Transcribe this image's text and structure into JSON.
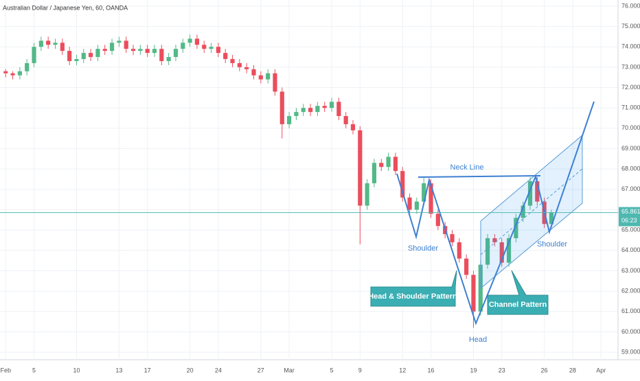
{
  "chart_data": {
    "type": "candlestick",
    "title": "Australian Dollar / Japanese Yen, 60, OANDA",
    "x": [
      0,
      0.5,
      1,
      1.5,
      2,
      2.5,
      3,
      3.5,
      4,
      4.5,
      5,
      5.5,
      6,
      6.5,
      7,
      7.5,
      8,
      8.5,
      9,
      9.5,
      10,
      10.5,
      11,
      11.5,
      12,
      12.5,
      13,
      13.5,
      14,
      14.5,
      15,
      15.5,
      16,
      16.5,
      17,
      17.5,
      18,
      18.5,
      19,
      19.5,
      20,
      20.5,
      21,
      21.5,
      22,
      22.5,
      23,
      23.5,
      24,
      24.5,
      25,
      25.5,
      26,
      26.5,
      27,
      27.5,
      28,
      28.5,
      29,
      29.5,
      30,
      30.5,
      31,
      31.5,
      32,
      32.5,
      33,
      33.5,
      34,
      34.5,
      35,
      35.5,
      36,
      36.5,
      37,
      37.5,
      38,
      38.5
    ],
    "open": [
      72.8,
      72.7,
      72.6,
      72.8,
      73.2,
      74.0,
      74.3,
      74.1,
      74.2,
      73.8,
      73.3,
      73.4,
      73.7,
      73.5,
      73.9,
      73.8,
      74.2,
      74.3,
      73.9,
      73.8,
      73.9,
      73.7,
      73.9,
      73.3,
      73.5,
      73.9,
      74.2,
      74.4,
      74.1,
      73.9,
      74.0,
      73.7,
      73.4,
      73.2,
      73.0,
      72.9,
      72.6,
      72.4,
      72.7,
      71.8,
      70.2,
      70.6,
      70.8,
      71.0,
      70.8,
      71.1,
      71.0,
      71.3,
      70.6,
      70.2,
      69.9,
      66.2,
      67.3,
      68.3,
      68.1,
      68.6,
      67.9,
      66.6,
      66.0,
      66.4,
      67.3,
      65.8,
      65.2,
      64.8,
      64.4,
      63.6,
      62.8,
      61.0,
      63.3,
      64.6,
      64.4,
      63.4,
      64.6,
      65.6,
      66.2,
      67.4,
      66.4,
      65.3
    ],
    "high": [
      72.9,
      72.8,
      73.0,
      73.4,
      74.2,
      74.5,
      74.5,
      74.4,
      74.4,
      74.0,
      73.6,
      73.9,
      73.9,
      74.1,
      74.1,
      74.4,
      74.5,
      74.5,
      74.1,
      74.1,
      74.1,
      74.1,
      74.1,
      73.7,
      74.1,
      74.4,
      74.6,
      74.6,
      74.3,
      74.2,
      74.2,
      73.9,
      73.6,
      73.4,
      73.2,
      73.1,
      72.8,
      72.9,
      72.9,
      72.0,
      70.8,
      71.0,
      71.2,
      71.2,
      71.3,
      71.3,
      71.5,
      71.5,
      70.8,
      70.4,
      70.1,
      67.5,
      68.5,
      68.5,
      68.8,
      68.8,
      68.1,
      66.8,
      66.6,
      67.6,
      67.5,
      66.0,
      65.4,
      65.0,
      64.6,
      63.8,
      63.0,
      63.5,
      64.8,
      64.8,
      64.6,
      64.8,
      65.8,
      66.4,
      67.6,
      67.6,
      66.6,
      66.0
    ],
    "low": [
      72.5,
      72.4,
      72.4,
      72.6,
      73.0,
      73.8,
      73.9,
      73.9,
      73.6,
      73.1,
      73.1,
      73.2,
      73.3,
      73.3,
      73.6,
      73.6,
      74.0,
      73.7,
      73.6,
      73.6,
      73.5,
      73.5,
      73.1,
      73.1,
      73.3,
      73.7,
      74.0,
      73.9,
      73.7,
      73.7,
      73.5,
      73.2,
      73.0,
      72.8,
      72.7,
      72.4,
      72.2,
      72.2,
      71.6,
      69.5,
      70.0,
      70.4,
      70.6,
      70.6,
      70.6,
      70.8,
      70.8,
      70.4,
      70.0,
      69.7,
      64.3,
      66.0,
      67.1,
      67.9,
      67.9,
      67.7,
      66.4,
      65.8,
      65.8,
      66.2,
      65.6,
      65.0,
      64.6,
      64.2,
      63.4,
      62.6,
      60.2,
      60.8,
      63.1,
      64.2,
      63.2,
      63.2,
      64.4,
      65.4,
      66.0,
      66.2,
      65.1,
      65.1
    ],
    "close": [
      72.7,
      72.6,
      72.8,
      73.2,
      74.0,
      74.3,
      74.1,
      74.2,
      73.8,
      73.3,
      73.4,
      73.7,
      73.5,
      73.9,
      73.8,
      74.2,
      74.3,
      73.9,
      73.8,
      73.9,
      73.7,
      73.9,
      73.3,
      73.5,
      73.9,
      74.2,
      74.4,
      74.1,
      73.9,
      74.0,
      73.7,
      73.4,
      73.2,
      73.0,
      72.9,
      72.6,
      72.4,
      72.7,
      71.8,
      70.2,
      70.6,
      70.8,
      71.0,
      70.8,
      71.1,
      71.0,
      71.3,
      70.6,
      70.2,
      69.9,
      66.2,
      67.3,
      68.3,
      68.1,
      68.6,
      67.9,
      66.6,
      66.0,
      66.4,
      67.3,
      65.8,
      65.2,
      64.8,
      64.4,
      63.6,
      62.8,
      61.0,
      63.3,
      64.6,
      64.4,
      63.4,
      64.6,
      65.6,
      66.2,
      67.4,
      66.4,
      65.3,
      65.86
    ],
    "up_color": "#53b987",
    "down_color": "#eb4d5c",
    "grid": true,
    "xlim": [
      -0.4,
      43.2
    ],
    "xticks": [
      {
        "value": 0,
        "label": "Feb"
      },
      {
        "value": 2,
        "label": "5"
      },
      {
        "value": 5,
        "label": "10"
      },
      {
        "value": 8,
        "label": "13"
      },
      {
        "value": 10,
        "label": "17"
      },
      {
        "value": 13,
        "label": "20"
      },
      {
        "value": 15,
        "label": "24"
      },
      {
        "value": 18,
        "label": "27"
      },
      {
        "value": 20,
        "label": "Mar"
      },
      {
        "value": 23,
        "label": "5"
      },
      {
        "value": 25,
        "label": "9"
      },
      {
        "value": 28,
        "label": "12"
      },
      {
        "value": 30,
        "label": "16"
      },
      {
        "value": 33,
        "label": "19"
      },
      {
        "value": 35,
        "label": "23"
      },
      {
        "value": 38,
        "label": "26"
      },
      {
        "value": 40,
        "label": "28"
      },
      {
        "value": 42,
        "label": "Apr"
      }
    ],
    "ylim": [
      58.7,
      76.3
    ],
    "yticks": [
      {
        "value": 59,
        "label": "59.000"
      },
      {
        "value": 60,
        "label": "60.000"
      },
      {
        "value": 61,
        "label": "61.000"
      },
      {
        "value": 62,
        "label": "62.000"
      },
      {
        "value": 63,
        "label": "63.000"
      },
      {
        "value": 64,
        "label": "64.000"
      },
      {
        "value": 65,
        "label": "65.000"
      },
      {
        "value": 66,
        "label": "66.000"
      },
      {
        "value": 67,
        "label": "67.000"
      },
      {
        "value": 68,
        "label": "68.000"
      },
      {
        "value": 69,
        "label": "69.000"
      },
      {
        "value": 70,
        "label": "70.000"
      },
      {
        "value": 71,
        "label": "71.000"
      },
      {
        "value": 72,
        "label": "72.000"
      },
      {
        "value": 73,
        "label": "73.000"
      },
      {
        "value": 74,
        "label": "74.000"
      },
      {
        "value": 75,
        "label": "75.000"
      },
      {
        "value": 76,
        "label": "76.000"
      }
    ],
    "last_price": 65.861,
    "countdown": "06:23",
    "annotations": [
      "Neck Line",
      "Shoulder",
      "Shoulder",
      "Head",
      "Head & Shoulder Pattern",
      "Channel Pattern"
    ]
  }
}
